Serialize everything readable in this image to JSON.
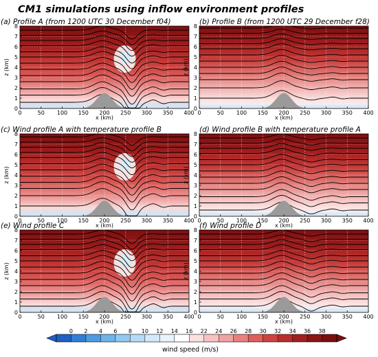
{
  "figure": {
    "title": "CM1 simulations using inflow environment profiles"
  },
  "chart_data": [
    {
      "type": "heatmap",
      "title": "(a) Profile A (from 1200 UTC 30 December f04)",
      "xlabel": "x (km)",
      "ylabel": "z (km)",
      "xlim": [
        0,
        400
      ],
      "ylim": [
        0,
        8
      ],
      "xticks": [
        "0",
        "50",
        "100",
        "150",
        "200",
        "250",
        "300",
        "350",
        "400"
      ],
      "yticks": [
        "0",
        "1",
        "2",
        "3",
        "4",
        "5",
        "6",
        "7",
        "8"
      ],
      "terrain_peak": {
        "x": 200,
        "height": 1.5
      },
      "wave_trough": {
        "x": 265,
        "depth_km": 1.7
      },
      "theta_contour_levels_z": [
        0.6,
        1.3,
        1.9,
        2.6,
        3.2,
        3.8,
        4.4,
        5.0,
        5.5,
        6.1,
        6.6,
        7.1,
        7.6
      ]
    },
    {
      "type": "heatmap",
      "title": "(b) Profile B (from 1200 UTC 29 December f28)",
      "xlabel": "x (km)",
      "ylabel": "z (km)",
      "xlim": [
        0,
        400
      ],
      "ylim": [
        0,
        8
      ],
      "xticks": [
        "0",
        "50",
        "100",
        "150",
        "200",
        "250",
        "300",
        "350",
        "400"
      ],
      "yticks": [
        "0",
        "1",
        "2",
        "3",
        "4",
        "5",
        "6",
        "7",
        "8"
      ],
      "terrain_peak": {
        "x": 200,
        "height": 1.5
      },
      "wave_trough": {
        "x": 265,
        "depth_km": 0.2
      },
      "theta_contour_levels_z": [
        1.0,
        2.0,
        2.8,
        3.4,
        4.0,
        4.6,
        5.2,
        5.8,
        6.3,
        6.8,
        7.3,
        7.8
      ]
    },
    {
      "type": "heatmap",
      "title": "(c) Wind profile A with temperature profile B",
      "xlabel": "x (km)",
      "ylabel": "z (km)",
      "xlim": [
        0,
        400
      ],
      "ylim": [
        0,
        8
      ],
      "xticks": [
        "0",
        "50",
        "100",
        "150",
        "200",
        "250",
        "300",
        "350",
        "400"
      ],
      "yticks": [
        "0",
        "1",
        "2",
        "3",
        "4",
        "5",
        "6",
        "7",
        "8"
      ],
      "terrain_peak": {
        "x": 200,
        "height": 1.5
      },
      "wave_trough": {
        "x": 265,
        "depth_km": 1.6
      },
      "theta_contour_levels_z": [
        1.0,
        2.0,
        2.7,
        3.3,
        3.9,
        4.5,
        5.1,
        5.7,
        6.2,
        6.7,
        7.2,
        7.7
      ]
    },
    {
      "type": "heatmap",
      "title": "(d) Wind profile B with temperature profile A",
      "xlabel": "x (km)",
      "ylabel": "z (km)",
      "xlim": [
        0,
        400
      ],
      "ylim": [
        0,
        8
      ],
      "xticks": [
        "0",
        "50",
        "100",
        "150",
        "200",
        "250",
        "300",
        "350",
        "400"
      ],
      "yticks": [
        "0",
        "1",
        "2",
        "3",
        "4",
        "5",
        "6",
        "7",
        "8"
      ],
      "terrain_peak": {
        "x": 200,
        "height": 1.5
      },
      "wave_trough": {
        "x": 265,
        "depth_km": 0.4
      },
      "theta_contour_levels_z": [
        0.6,
        1.3,
        1.9,
        2.6,
        3.2,
        3.8,
        4.4,
        5.0,
        5.5,
        6.1,
        6.6,
        7.1,
        7.6
      ]
    },
    {
      "type": "heatmap",
      "title": "(e) Wind profile C",
      "xlabel": "x (km)",
      "ylabel": "z (km)",
      "xlim": [
        0,
        400
      ],
      "ylim": [
        0,
        8
      ],
      "xticks": [
        "0",
        "50",
        "100",
        "150",
        "200",
        "250",
        "300",
        "350",
        "400"
      ],
      "yticks": [
        "0",
        "1",
        "2",
        "3",
        "4",
        "5",
        "6",
        "7",
        "8"
      ],
      "terrain_peak": {
        "x": 200,
        "height": 1.5
      },
      "wave_trough": {
        "x": 265,
        "depth_km": 1.8
      },
      "theta_contour_levels_z": [
        0.6,
        1.3,
        1.9,
        2.6,
        3.2,
        3.8,
        4.4,
        5.0,
        5.5,
        6.1,
        6.6,
        7.1,
        7.6
      ]
    },
    {
      "type": "heatmap",
      "title": "(f) Wind profile D",
      "xlabel": "x (km)",
      "ylabel": "z (km)",
      "xlim": [
        0,
        400
      ],
      "ylim": [
        0,
        8
      ],
      "xticks": [
        "0",
        "50",
        "100",
        "150",
        "200",
        "250",
        "300",
        "350",
        "400"
      ],
      "yticks": [
        "0",
        "1",
        "2",
        "3",
        "4",
        "5",
        "6",
        "7",
        "8"
      ],
      "terrain_peak": {
        "x": 200,
        "height": 1.5
      },
      "wave_trough": {
        "x": 265,
        "depth_km": 0.5
      },
      "theta_contour_levels_z": [
        0.6,
        1.3,
        1.9,
        2.6,
        3.2,
        3.8,
        4.4,
        5.0,
        5.5,
        6.1,
        6.6,
        7.1,
        7.6
      ]
    }
  ],
  "colorbar": {
    "label": "wind speed (m/s)",
    "ticks": [
      "0",
      "2",
      "4",
      "6",
      "8",
      "10",
      "12",
      "14",
      "16",
      "22",
      "24",
      "26",
      "28",
      "30",
      "32",
      "34",
      "36",
      "38"
    ],
    "colors": [
      "#1e5fc4",
      "#2e7fd6",
      "#4d9be0",
      "#6fb3ea",
      "#92c8f1",
      "#b4daf6",
      "#d2e9fa",
      "#e8f4fc",
      "#ffffff",
      "#fbe0e0",
      "#f6c2c1",
      "#f0a3a1",
      "#e8807e",
      "#de5f5c",
      "#cf4240",
      "#bb2d2c",
      "#a31f1f",
      "#8b1414",
      "#7a0e0e"
    ]
  }
}
